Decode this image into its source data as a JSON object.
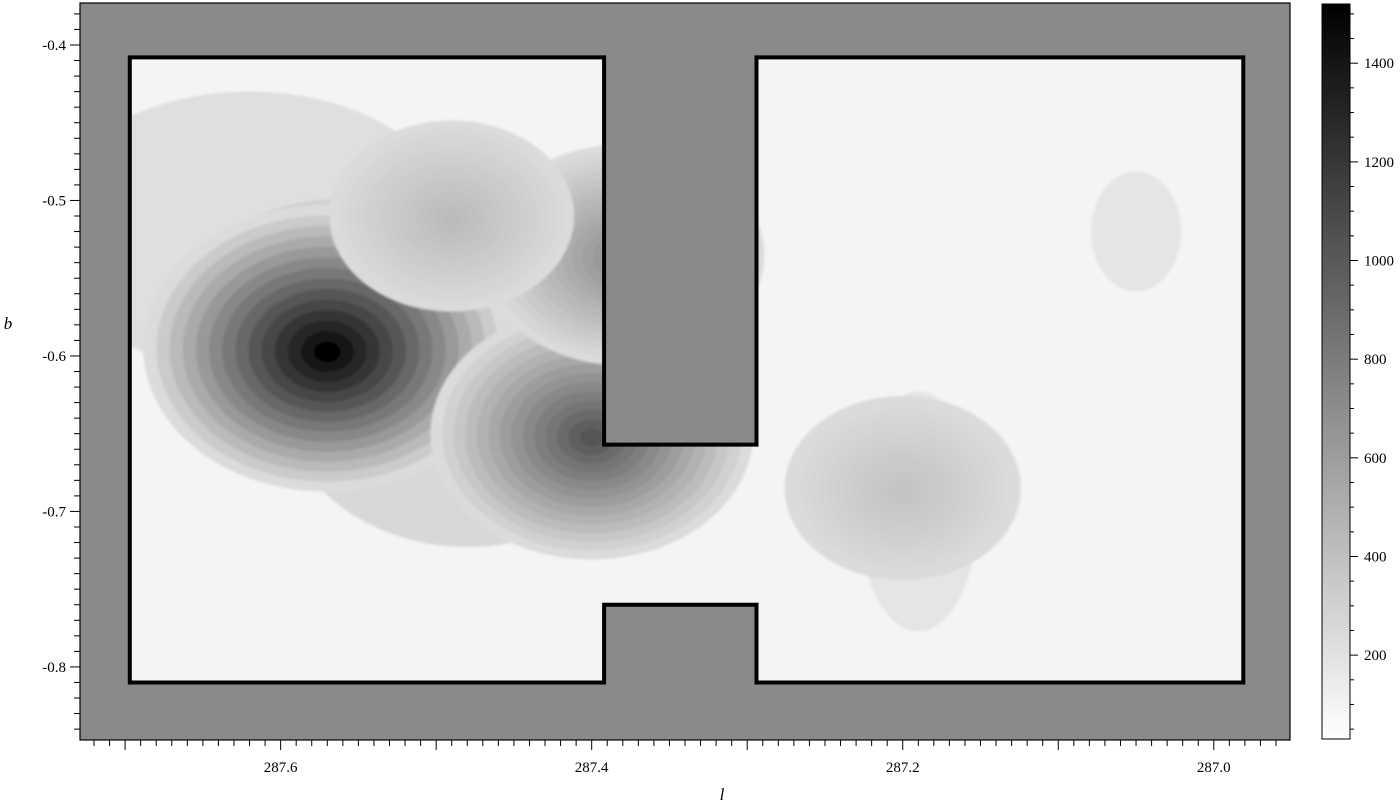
{
  "chart_data": {
    "type": "heatmap",
    "title": "",
    "xlabel": "l",
    "ylabel": "b",
    "xlim": [
      287.729,
      286.951
    ],
    "ylim": [
      -0.847,
      -0.373
    ],
    "x_ticks": [
      "287.6",
      "287.4",
      "287.2",
      "287.0"
    ],
    "x_tick_values": [
      287.6,
      287.4,
      287.2,
      287.0
    ],
    "y_ticks": [
      "-0.4",
      "-0.5",
      "-0.6",
      "-0.7",
      "-0.8"
    ],
    "y_tick_values": [
      -0.4,
      -0.5,
      -0.6,
      -0.7,
      -0.8
    ],
    "colorbar": {
      "min": 30,
      "max": 1520,
      "ticks": [
        "200",
        "400",
        "600",
        "800",
        "1000",
        "1200",
        "1400"
      ],
      "tick_values": [
        200,
        400,
        600,
        800,
        1000,
        1200,
        1400
      ],
      "colormap": "white-to-black"
    },
    "mask_color": "#8a8a8a",
    "survey_outline": [
      [
        287.697,
        -0.408
      ],
      [
        287.392,
        -0.408
      ],
      [
        287.392,
        -0.657
      ],
      [
        287.294,
        -0.657
      ],
      [
        287.294,
        -0.408
      ],
      [
        286.981,
        -0.408
      ],
      [
        286.981,
        -0.81
      ],
      [
        287.294,
        -0.81
      ],
      [
        287.294,
        -0.76
      ],
      [
        287.392,
        -0.76
      ],
      [
        287.392,
        -0.81
      ],
      [
        287.697,
        -0.81
      ]
    ],
    "peaks": [
      {
        "l": 287.57,
        "b": -0.595,
        "value": 1500
      },
      {
        "l": 287.4,
        "b": -0.65,
        "value": 1000
      },
      {
        "l": 287.38,
        "b": -0.535,
        "value": 650
      },
      {
        "l": 287.49,
        "b": -0.51,
        "value": 380
      },
      {
        "l": 287.2,
        "b": -0.685,
        "value": 330
      }
    ]
  }
}
